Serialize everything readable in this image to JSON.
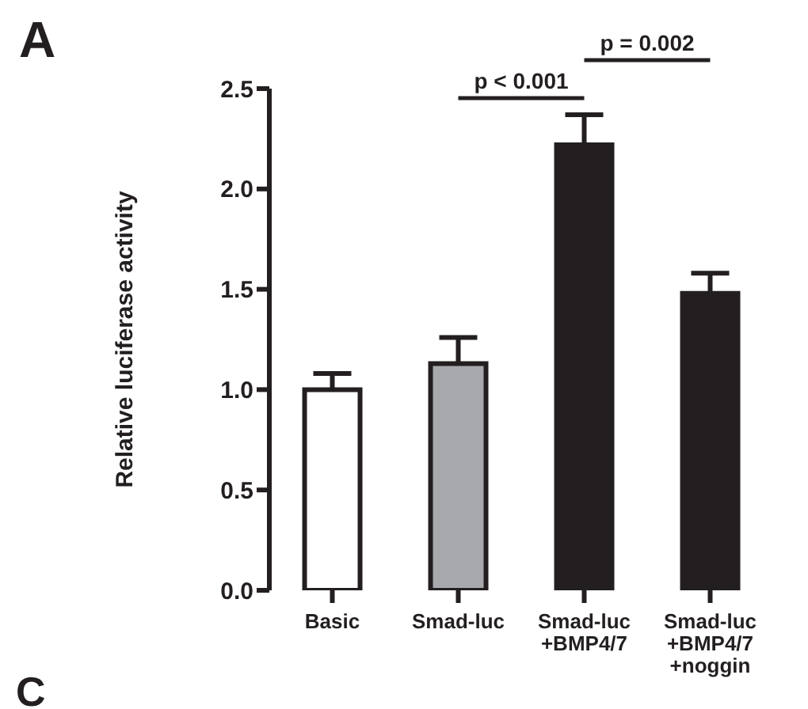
{
  "chart_data": {
    "type": "bar",
    "ylabel": "Relative luciferase activity",
    "categories": [
      "Basic",
      "Smad-luc",
      "Smad-luc\n+BMP4/7",
      "Smad-luc\n+BMP4/7\n+noggin"
    ],
    "values": [
      1.0,
      1.13,
      2.22,
      1.48
    ],
    "colors": [
      "#ffffff",
      "#a7a9ac",
      "#231f20",
      "#231f20"
    ],
    "errors": [
      [
        1.0,
        1.08
      ],
      [
        1.13,
        1.26
      ],
      [
        2.22,
        2.37
      ],
      [
        1.48,
        1.58
      ]
    ],
    "ylim": [
      0,
      2.5
    ],
    "yticks": [
      {
        "value": 0,
        "label": "0.0"
      },
      {
        "value": 0.5,
        "label": "0.5"
      },
      {
        "value": 1,
        "label": "1.0"
      },
      {
        "value": 1.5,
        "label": "1.5"
      },
      {
        "value": 2,
        "label": "2.0"
      },
      {
        "value": 2.5,
        "label": "2.5"
      }
    ],
    "grid": false,
    "legend": false,
    "annotations": [
      "A",
      "p < 0.001",
      "p = 0.002",
      "C"
    ]
  }
}
